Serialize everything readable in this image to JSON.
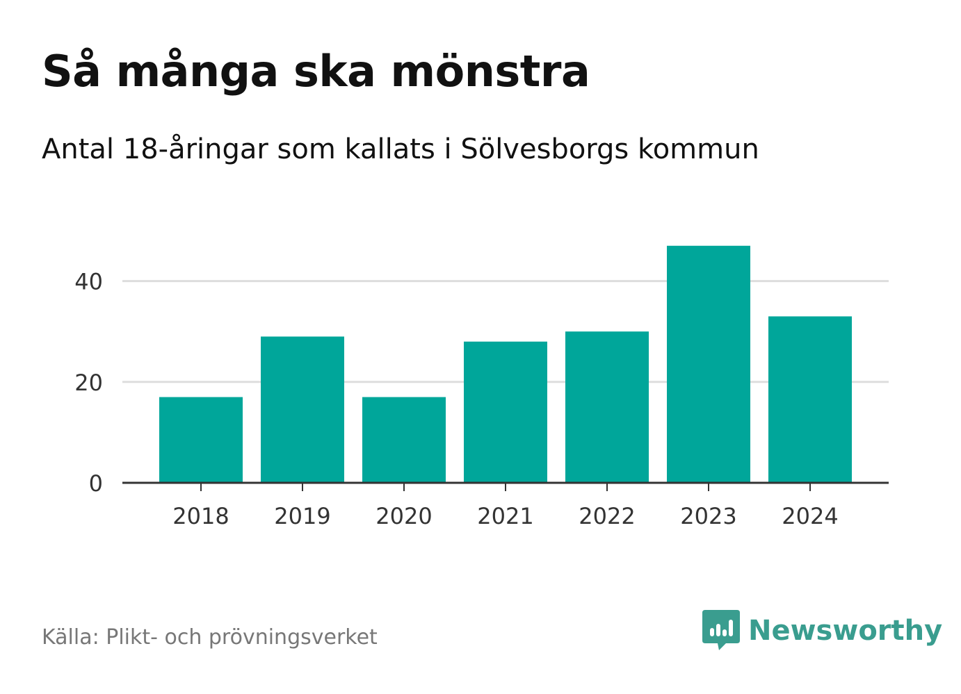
{
  "title": "Så många ska mönstra",
  "subtitle": "Antal 18-åringar som kallats i Sölvesborgs kommun",
  "source": "Källa: Plikt- och prövningsverket",
  "brand": {
    "name": "Newsworthy",
    "logo_icon": "newsworthy-logo-icon",
    "color": "#3a9d8f"
  },
  "colors": {
    "bar": "#00a69a",
    "grid": "#dddddd",
    "axis": "#333333",
    "tick_text": "#333333"
  },
  "chart_data": {
    "type": "bar",
    "title": "Så många ska mönstra",
    "subtitle": "Antal 18-åringar som kallats i Sölvesborgs kommun",
    "xlabel": "",
    "ylabel": "",
    "categories": [
      "2018",
      "2019",
      "2020",
      "2021",
      "2022",
      "2023",
      "2024"
    ],
    "values": [
      17,
      29,
      17,
      28,
      30,
      47,
      33
    ],
    "ylim": [
      0,
      50
    ],
    "yticks": [
      0,
      20,
      40
    ],
    "grid": true,
    "legend": "none"
  }
}
